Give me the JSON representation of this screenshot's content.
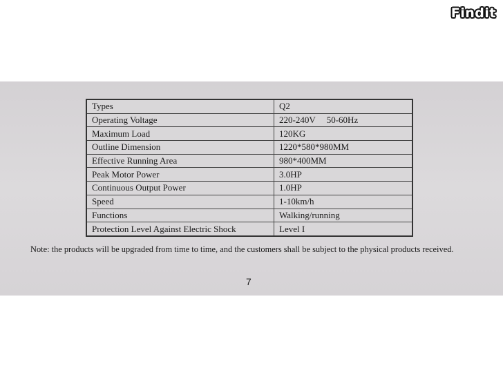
{
  "logo": "Findit",
  "spec_table": [
    [
      "Types",
      "Q2"
    ],
    [
      "Operating Voltage",
      "220-240V     50-60Hz"
    ],
    [
      "Maximum Load",
      "120KG"
    ],
    [
      "Outline Dimension",
      "1220*580*980MM"
    ],
    [
      "Effective Running Area",
      "980*400MM"
    ],
    [
      "Peak Motor Power",
      "3.0HP"
    ],
    [
      "Continuous Output Power",
      "1.0HP"
    ],
    [
      "Speed",
      "1-10km/h"
    ],
    [
      "Functions",
      "Walking/running"
    ],
    [
      "Protection Level Against Electric Shock",
      "Level I"
    ]
  ],
  "note": "Note: the products will be upgraded from time to time, and the customers shall be subject to the physical products received.",
  "page_number": "7"
}
